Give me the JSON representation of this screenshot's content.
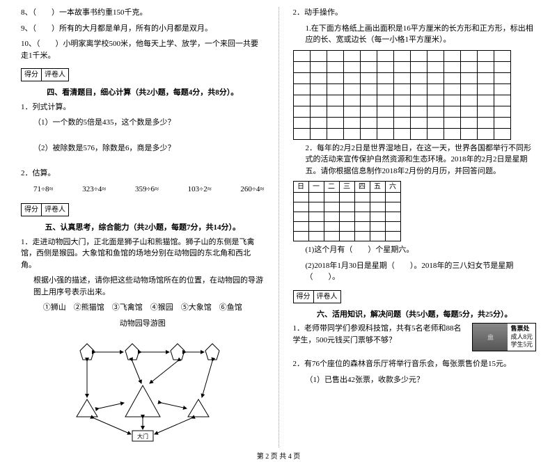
{
  "left": {
    "q8": "8、（　　）一本故事书约重150千克。",
    "q9": "9、（　　）所有的大月都是单月，所有的小月都是双月。",
    "q10": "10、（　　）小明家离学校500米，他每天上学、放学，一个来回一共要走1千米。",
    "score_labels": {
      "score": "得分",
      "grader": "评卷人"
    },
    "sec4_title": "四、看清题目，细心计算（共2小题，每题4分，共8分）。",
    "s4q1": "1．列式计算。",
    "s4q1a": "（1）一个数的5倍是435，这个数是多少？",
    "s4q1b": "（2）被除数是576，除数是6，商是多少？",
    "s4q2": "2．估算。",
    "est": [
      "71÷8≈",
      "323÷4≈",
      "359÷6≈",
      "103÷2≈",
      "260÷4≈"
    ],
    "sec5_title": "五、认真思考，综合能力（共2小题，每题7分，共14分）。",
    "s5q1a": "1．走进动物园大门，正北面是狮子山和熊猫馆。狮子山的东侧是飞禽馆，西侧是猴园。大象馆和鱼馆的场地分别在动物园的东北角和西北角。",
    "s5q1b": "根据小强的描述，请你把这些动物场馆所在的位置，在动物园的导游图上用序号表示出来。",
    "s5q1c": "①狮山　②熊猫馆　③飞禽馆　④猴园　⑤大象馆　⑥鱼馆",
    "s5q1d": "动物园导游图",
    "gate": "大门"
  },
  "right": {
    "s5q2": "2．动手操作。",
    "s5q2a": "1.在下面方格纸上画出面积是16平方厘米的长方形和正方形，标出相应的长、宽或边长（每一小格1平方厘米）。",
    "s5q2b": "2．每年的2月2日是世界湿地日，在这一天，世界各国都举行不同形式的活动来宣传保护自然资源和生态环境。2018年的2月2日是星期五。请你根据信息制作2018年2月份的月历，并回答问题。",
    "days": [
      "日",
      "一",
      "二",
      "三",
      "四",
      "五",
      "六"
    ],
    "s5q2c1": "(1)这个月有（　　）个星期六。",
    "s5q2c2": "(2)2018年1月30日是星期（　　）。2018年的三八妇女节是星期（　　）。",
    "sec6_title": "六、活用知识，解决问题（共5小题，每题5分，共25分）。",
    "s6q1": "1．老师带同学们参观科技馆，共有5名老师和88名学生，500元钱买门票够不够？",
    "ticket": {
      "header": "售票处",
      "adult": "成人8元",
      "student": "学生5元"
    },
    "s6q2": "2．有76个座位的森林音乐厅将举行音乐会，每张票售价是15元。",
    "s6q2a": "（1）已售出42张票，收款多少元？"
  },
  "footer": "第 2 页 共 4 页",
  "grid": {
    "rows": 8,
    "cols": 13
  },
  "cal": {
    "body_rows": 5,
    "cols": 7
  }
}
